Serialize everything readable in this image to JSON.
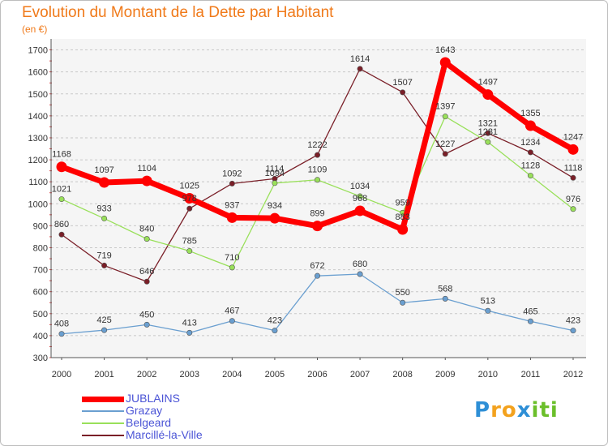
{
  "chart_data": {
    "type": "line",
    "title": "Evolution du Montant de la Dette par Habitant",
    "subtitle": "(en €)",
    "xlabel": "",
    "ylabel": "",
    "x": [
      "2000",
      "2001",
      "2002",
      "2003",
      "2004",
      "2005",
      "2006",
      "2007",
      "2008",
      "2009",
      "2010",
      "2011",
      "2012"
    ],
    "yticks": [
      300,
      400,
      500,
      600,
      700,
      800,
      900,
      1000,
      1100,
      1200,
      1300,
      1400,
      1500,
      1600,
      1700
    ],
    "ylim": [
      300,
      1750
    ],
    "grid": "horizontal dashed",
    "legend_position": "bottom-left",
    "series": [
      {
        "name": "JUBLAINS",
        "color": "#ff0000",
        "values": [
          1168,
          1097,
          1104,
          1025,
          937,
          934,
          899,
          968,
          883,
          1643,
          1497,
          1355,
          1247
        ]
      },
      {
        "name": "Grazay",
        "color": "#6a9fd0",
        "values": [
          408,
          425,
          450,
          413,
          467,
          423,
          672,
          680,
          550,
          568,
          513,
          465,
          423
        ]
      },
      {
        "name": "Belgeard",
        "color": "#99e05a",
        "values": [
          1021,
          933,
          840,
          785,
          710,
          1094,
          1109,
          1034,
          959,
          1397,
          1281,
          1128,
          976
        ]
      },
      {
        "name": "Marcillé-la-Ville",
        "color": "#7a1f28",
        "values": [
          860,
          719,
          646,
          978,
          1092,
          1114,
          1222,
          1614,
          1507,
          1227,
          1321,
          1234,
          1118
        ]
      }
    ]
  },
  "logo": {
    "letters": [
      "P",
      "r",
      "o",
      "x",
      "i",
      "t",
      "i"
    ],
    "colors": [
      "#2e8fd6",
      "#f3a21e",
      "#f3a21e",
      "#2e8fd6",
      "#6bbf2a",
      "#6bbf2a",
      "#6bbf2a"
    ]
  }
}
